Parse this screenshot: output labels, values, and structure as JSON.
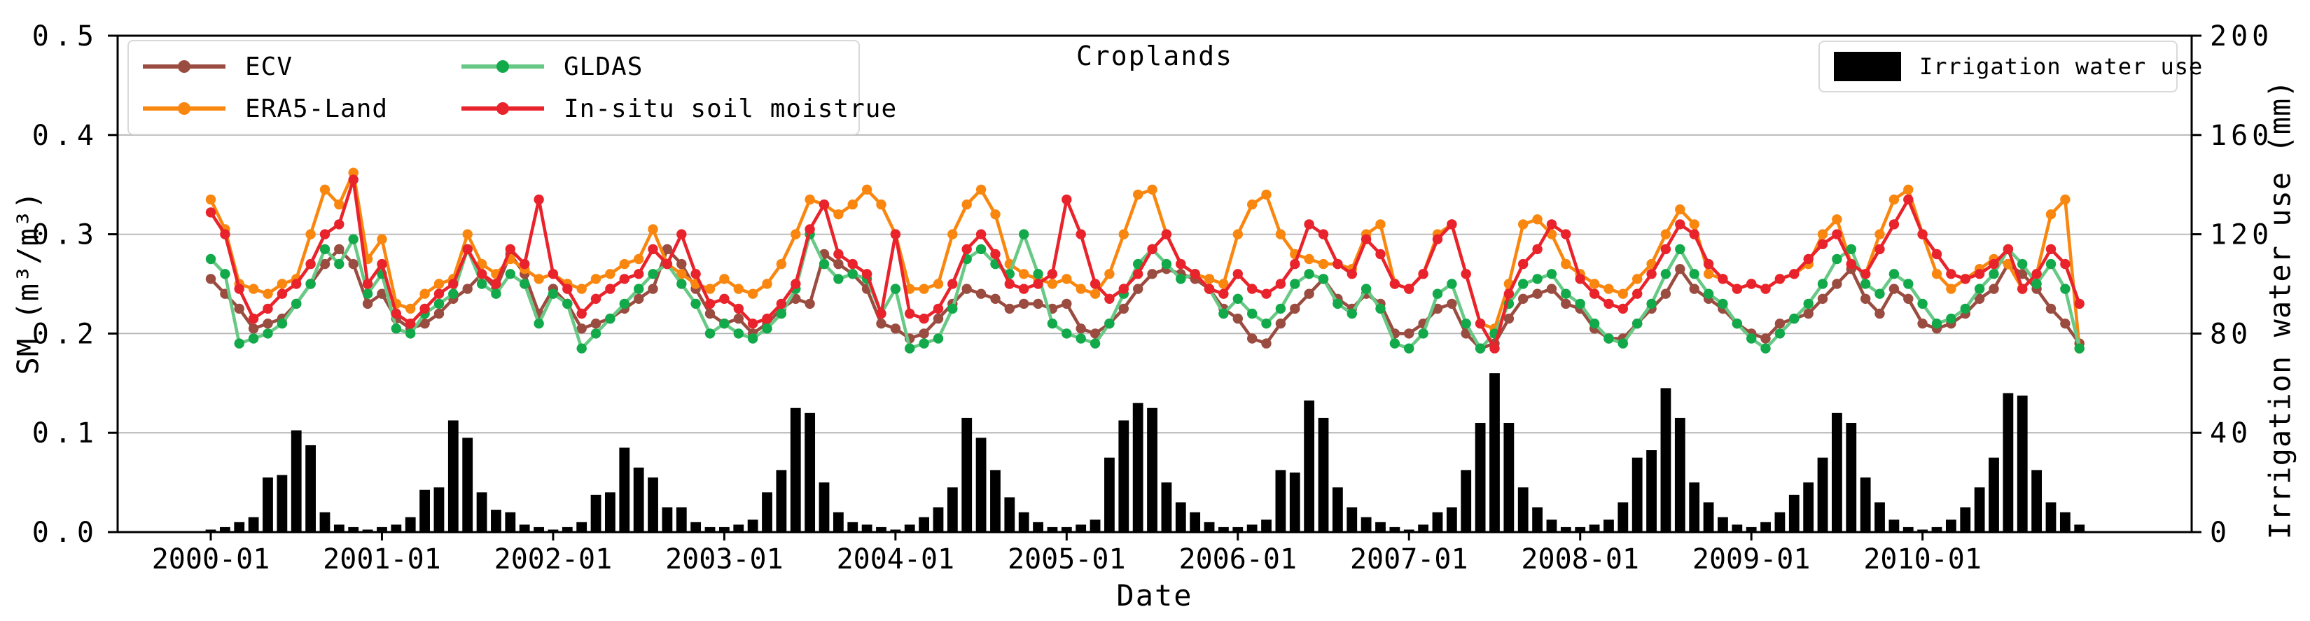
{
  "title": "Croplands",
  "axes": {
    "x_label": "Date",
    "y_left_label": "SM (m³/m³)",
    "y_right_label": "Irrigation water use (mm)",
    "y_left_ticks": [
      "0.0",
      "0.1",
      "0.2",
      "0.3",
      "0.4",
      "0.5"
    ],
    "y_right_ticks": [
      "0",
      "40",
      "80",
      "120",
      "160",
      "200"
    ],
    "x_tick_labels": [
      "2000-01",
      "2001-01",
      "2002-01",
      "2003-01",
      "2004-01",
      "2005-01",
      "2006-01",
      "2007-01",
      "2008-01",
      "2009-01",
      "2010-01"
    ]
  },
  "legend_right": {
    "label": "Irrigation water use",
    "swatch_color": "#000000"
  },
  "colors": {
    "grid": "#b3b3b3",
    "axis": "#000000",
    "bar": "#000000",
    "legend_border": "#d9d9d9"
  },
  "chart_data": {
    "type": "line+bar",
    "title": "Croplands",
    "x_start": "2000-01",
    "x_end": "2010-12",
    "x_unit": "month",
    "xlabel": "Date",
    "ylabel_left": "SM (m³/m³)",
    "ylabel_right": "Irrigation water use (mm)",
    "ylim_left": [
      0,
      0.5
    ],
    "ylim_right": [
      0,
      200
    ],
    "grid": true,
    "x_tick_month_indices": [
      0,
      12,
      24,
      36,
      48,
      60,
      72,
      84,
      96,
      108,
      120
    ],
    "series": [
      {
        "name": "ECV",
        "type": "line",
        "color": "#9a4c40",
        "marker_color": "#9a4c40",
        "values": [
          0.255,
          0.24,
          0.225,
          0.205,
          0.21,
          0.215,
          0.23,
          0.25,
          0.27,
          0.285,
          0.27,
          0.23,
          0.24,
          0.215,
          0.205,
          0.21,
          0.22,
          0.235,
          0.245,
          0.26,
          0.245,
          0.28,
          0.26,
          0.22,
          0.245,
          0.23,
          0.205,
          0.21,
          0.215,
          0.225,
          0.235,
          0.245,
          0.285,
          0.27,
          0.245,
          0.22,
          0.21,
          0.215,
          0.2,
          0.21,
          0.225,
          0.235,
          0.23,
          0.28,
          0.27,
          0.26,
          0.245,
          0.21,
          0.205,
          0.195,
          0.2,
          0.215,
          0.23,
          0.245,
          0.24,
          0.235,
          0.225,
          0.23,
          0.23,
          0.225,
          0.23,
          0.205,
          0.2,
          0.21,
          0.225,
          0.245,
          0.26,
          0.265,
          0.26,
          0.255,
          0.245,
          0.225,
          0.215,
          0.195,
          0.19,
          0.21,
          0.225,
          0.24,
          0.255,
          0.235,
          0.225,
          0.24,
          0.23,
          0.2,
          0.2,
          0.21,
          0.225,
          0.23,
          0.2,
          0.185,
          0.19,
          0.215,
          0.235,
          0.24,
          0.245,
          0.23,
          0.225,
          0.205,
          0.195,
          0.195,
          0.21,
          0.225,
          0.24,
          0.265,
          0.245,
          0.235,
          0.225,
          0.21,
          0.2,
          0.195,
          0.21,
          0.215,
          0.22,
          0.235,
          0.25,
          0.265,
          0.235,
          0.22,
          0.245,
          0.235,
          0.21,
          0.205,
          0.21,
          0.22,
          0.235,
          0.245,
          0.27,
          0.26,
          0.245,
          0.225,
          0.21,
          0.19
        ]
      },
      {
        "name": "ERA5-Land",
        "type": "line",
        "color": "#f9870f",
        "marker_color": "#f9870f",
        "values": [
          0.335,
          0.305,
          0.25,
          0.245,
          0.24,
          0.25,
          0.255,
          0.3,
          0.345,
          0.33,
          0.362,
          0.275,
          0.295,
          0.23,
          0.225,
          0.24,
          0.25,
          0.255,
          0.3,
          0.27,
          0.26,
          0.275,
          0.265,
          0.255,
          0.26,
          0.25,
          0.245,
          0.255,
          0.26,
          0.27,
          0.275,
          0.305,
          0.27,
          0.26,
          0.25,
          0.245,
          0.255,
          0.245,
          0.24,
          0.25,
          0.27,
          0.3,
          0.335,
          0.33,
          0.32,
          0.33,
          0.345,
          0.33,
          0.3,
          0.245,
          0.245,
          0.25,
          0.3,
          0.33,
          0.345,
          0.32,
          0.27,
          0.26,
          0.255,
          0.25,
          0.255,
          0.245,
          0.24,
          0.26,
          0.3,
          0.34,
          0.345,
          0.3,
          0.27,
          0.26,
          0.255,
          0.25,
          0.3,
          0.33,
          0.34,
          0.3,
          0.28,
          0.275,
          0.27,
          0.27,
          0.265,
          0.3,
          0.31,
          0.25,
          0.245,
          0.26,
          0.3,
          0.31,
          0.26,
          0.21,
          0.205,
          0.25,
          0.31,
          0.315,
          0.3,
          0.27,
          0.26,
          0.25,
          0.245,
          0.24,
          0.255,
          0.27,
          0.3,
          0.325,
          0.31,
          0.26,
          0.255,
          0.245,
          0.25,
          0.245,
          0.255,
          0.26,
          0.27,
          0.3,
          0.315,
          0.27,
          0.26,
          0.3,
          0.335,
          0.345,
          0.3,
          0.26,
          0.245,
          0.255,
          0.265,
          0.275,
          0.27,
          0.245,
          0.26,
          0.32,
          0.335,
          0.185
        ]
      },
      {
        "name": "GLDAS",
        "type": "line",
        "color": "#67c985",
        "marker_color": "#12a94b",
        "values": [
          0.275,
          0.26,
          0.19,
          0.195,
          0.2,
          0.21,
          0.23,
          0.25,
          0.285,
          0.27,
          0.295,
          0.24,
          0.26,
          0.205,
          0.2,
          0.22,
          0.23,
          0.24,
          0.285,
          0.25,
          0.24,
          0.26,
          0.25,
          0.21,
          0.24,
          0.23,
          0.185,
          0.2,
          0.215,
          0.23,
          0.245,
          0.26,
          0.27,
          0.25,
          0.23,
          0.2,
          0.21,
          0.2,
          0.195,
          0.205,
          0.22,
          0.245,
          0.3,
          0.27,
          0.255,
          0.26,
          0.255,
          0.22,
          0.245,
          0.185,
          0.19,
          0.195,
          0.225,
          0.275,
          0.285,
          0.27,
          0.26,
          0.3,
          0.26,
          0.21,
          0.2,
          0.195,
          0.19,
          0.21,
          0.24,
          0.27,
          0.285,
          0.27,
          0.255,
          0.26,
          0.245,
          0.22,
          0.235,
          0.22,
          0.21,
          0.225,
          0.25,
          0.26,
          0.255,
          0.23,
          0.22,
          0.245,
          0.225,
          0.19,
          0.185,
          0.2,
          0.24,
          0.25,
          0.21,
          0.185,
          0.2,
          0.23,
          0.25,
          0.255,
          0.26,
          0.24,
          0.23,
          0.21,
          0.195,
          0.19,
          0.21,
          0.23,
          0.26,
          0.285,
          0.26,
          0.24,
          0.23,
          0.21,
          0.195,
          0.185,
          0.2,
          0.215,
          0.23,
          0.25,
          0.275,
          0.285,
          0.25,
          0.24,
          0.26,
          0.25,
          0.23,
          0.21,
          0.215,
          0.225,
          0.245,
          0.26,
          0.285,
          0.27,
          0.25,
          0.27,
          0.245,
          0.185
        ]
      },
      {
        "name": "In-situ soil moistrue",
        "type": "line",
        "color": "#e9232b",
        "marker_color": "#e9232b",
        "values": [
          0.322,
          0.3,
          0.245,
          0.215,
          0.225,
          0.24,
          0.25,
          0.27,
          0.3,
          0.31,
          0.355,
          0.25,
          0.27,
          0.22,
          0.21,
          0.225,
          0.24,
          0.25,
          0.285,
          0.26,
          0.25,
          0.285,
          0.27,
          0.335,
          0.26,
          0.245,
          0.22,
          0.235,
          0.245,
          0.255,
          0.26,
          0.285,
          0.27,
          0.3,
          0.26,
          0.23,
          0.235,
          0.225,
          0.21,
          0.215,
          0.23,
          0.25,
          0.305,
          0.33,
          0.28,
          0.27,
          0.26,
          0.22,
          0.3,
          0.22,
          0.215,
          0.225,
          0.25,
          0.285,
          0.3,
          0.28,
          0.25,
          0.245,
          0.25,
          0.26,
          0.335,
          0.3,
          0.25,
          0.235,
          0.245,
          0.26,
          0.285,
          0.3,
          0.27,
          0.26,
          0.245,
          0.24,
          0.26,
          0.245,
          0.24,
          0.25,
          0.27,
          0.31,
          0.3,
          0.27,
          0.26,
          0.295,
          0.28,
          0.25,
          0.245,
          0.26,
          0.295,
          0.31,
          0.26,
          0.21,
          0.185,
          0.24,
          0.27,
          0.285,
          0.31,
          0.3,
          0.255,
          0.24,
          0.23,
          0.225,
          0.24,
          0.26,
          0.285,
          0.31,
          0.3,
          0.27,
          0.255,
          0.245,
          0.25,
          0.245,
          0.255,
          0.26,
          0.275,
          0.29,
          0.3,
          0.27,
          0.26,
          0.285,
          0.31,
          0.335,
          0.3,
          0.28,
          0.26,
          0.255,
          0.26,
          0.27,
          0.285,
          0.245,
          0.26,
          0.285,
          0.27,
          0.23
        ]
      }
    ],
    "bars": {
      "name": "Irrigation water use",
      "axis": "right",
      "color": "#000000",
      "values": [
        1,
        2,
        4,
        6,
        22,
        23,
        41,
        35,
        8,
        3,
        2,
        1,
        2,
        3,
        6,
        17,
        18,
        45,
        38,
        16,
        9,
        8,
        3,
        2,
        1,
        2,
        4,
        15,
        16,
        34,
        26,
        22,
        10,
        10,
        4,
        2,
        2,
        3,
        5,
        16,
        25,
        50,
        48,
        20,
        8,
        4,
        3,
        2,
        1,
        3,
        6,
        10,
        18,
        46,
        38,
        25,
        14,
        8,
        4,
        2,
        2,
        3,
        5,
        30,
        45,
        52,
        50,
        20,
        12,
        8,
        4,
        2,
        2,
        3,
        5,
        25,
        24,
        53,
        46,
        18,
        10,
        6,
        4,
        2,
        1,
        3,
        8,
        10,
        25,
        44,
        64,
        44,
        18,
        10,
        5,
        2,
        2,
        3,
        5,
        12,
        30,
        33,
        58,
        46,
        20,
        12,
        6,
        3,
        2,
        4,
        8,
        15,
        20,
        30,
        48,
        44,
        22,
        12,
        5,
        2,
        1,
        2,
        5,
        10,
        18,
        30,
        56,
        55,
        25,
        12,
        8,
        3
      ]
    }
  }
}
